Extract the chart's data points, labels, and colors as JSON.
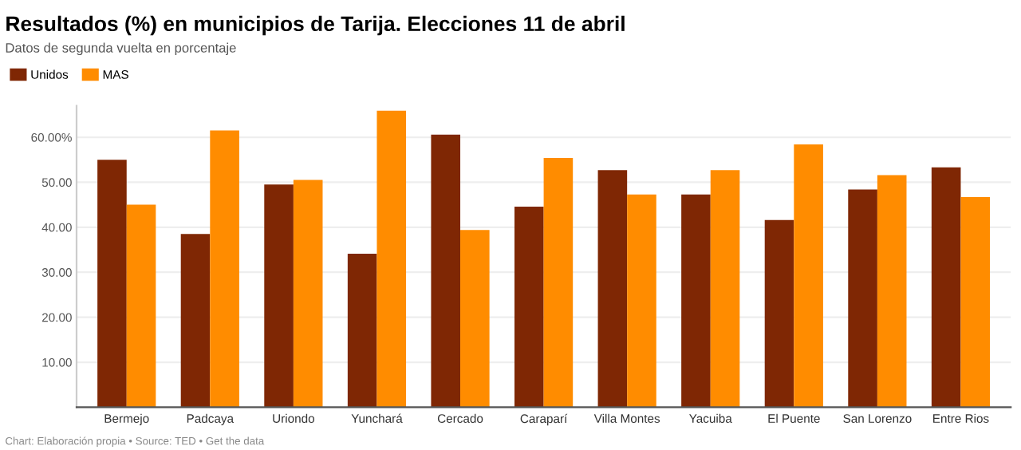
{
  "chart_data": {
    "type": "bar",
    "title": "Resultados (%) en municipios de Tarija. Elecciones 11 de abril",
    "subtitle": "Datos de segunda vuelta en porcentaje",
    "categories": [
      "Bermejo",
      "Padcaya",
      "Uriondo",
      "Yunchará",
      "Cercado",
      "Caraparí",
      "Villa Montes",
      "Yacuiba",
      "El Puente",
      "San Lorenzo",
      "Entre Rios"
    ],
    "series": [
      {
        "name": "Unidos",
        "color": "#7f2704",
        "values": [
          55.0,
          38.5,
          49.5,
          34.1,
          60.6,
          44.6,
          52.7,
          47.3,
          41.6,
          48.4,
          53.3
        ]
      },
      {
        "name": "MAS",
        "color": "#ff8c00",
        "values": [
          45.0,
          61.5,
          50.5,
          65.9,
          39.4,
          55.4,
          47.3,
          52.7,
          58.4,
          51.6,
          46.7
        ]
      }
    ],
    "ylim": [
      0,
      67
    ],
    "yticks": [
      {
        "value": 10,
        "label": "10.00"
      },
      {
        "value": 20,
        "label": "20.00"
      },
      {
        "value": 30,
        "label": "30.00"
      },
      {
        "value": 40,
        "label": "40.00"
      },
      {
        "value": 50,
        "label": "50.00"
      },
      {
        "value": 60,
        "label": "60.00%"
      }
    ],
    "grid": "y",
    "legend": "top left",
    "annotations": [
      "Chart: Elaboración propia • Source: TED • Get the data"
    ]
  }
}
